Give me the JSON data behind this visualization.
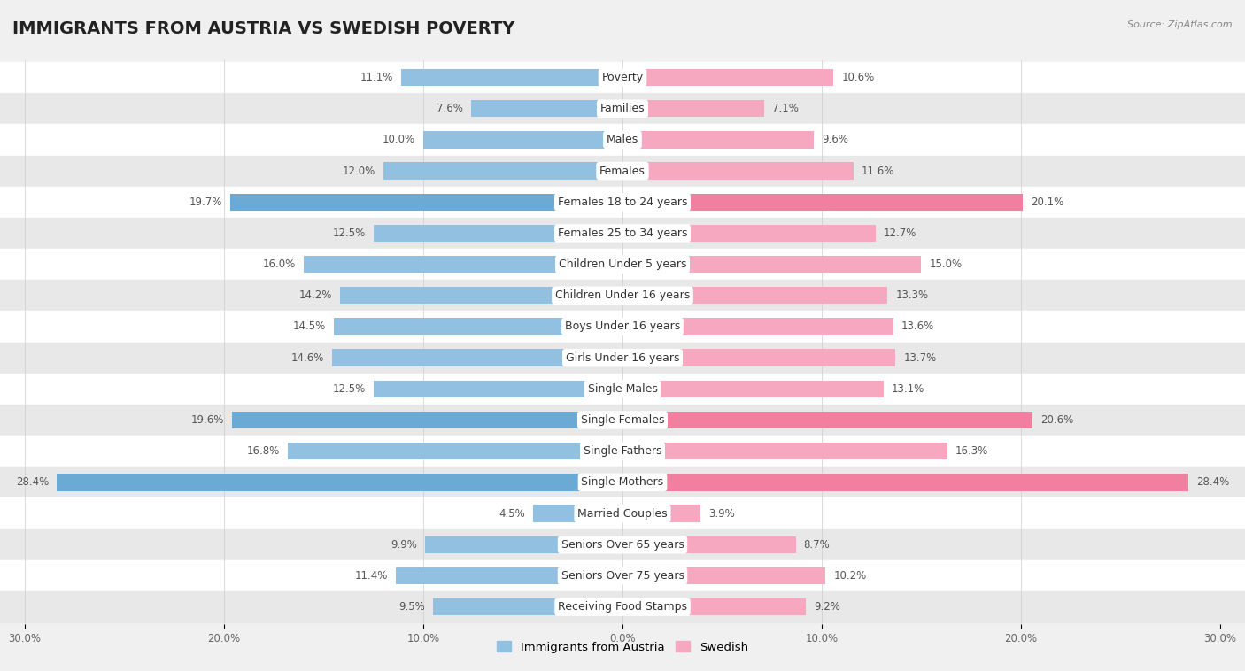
{
  "title": "IMMIGRANTS FROM AUSTRIA VS SWEDISH POVERTY",
  "source": "Source: ZipAtlas.com",
  "categories": [
    "Poverty",
    "Families",
    "Males",
    "Females",
    "Females 18 to 24 years",
    "Females 25 to 34 years",
    "Children Under 5 years",
    "Children Under 16 years",
    "Boys Under 16 years",
    "Girls Under 16 years",
    "Single Males",
    "Single Females",
    "Single Fathers",
    "Single Mothers",
    "Married Couples",
    "Seniors Over 65 years",
    "Seniors Over 75 years",
    "Receiving Food Stamps"
  ],
  "left_values": [
    11.1,
    7.6,
    10.0,
    12.0,
    19.7,
    12.5,
    16.0,
    14.2,
    14.5,
    14.6,
    12.5,
    19.6,
    16.8,
    28.4,
    4.5,
    9.9,
    11.4,
    9.5
  ],
  "right_values": [
    10.6,
    7.1,
    9.6,
    11.6,
    20.1,
    12.7,
    15.0,
    13.3,
    13.6,
    13.7,
    13.1,
    20.6,
    16.3,
    28.4,
    3.9,
    8.7,
    10.2,
    9.2
  ],
  "left_color": "#92c0e0",
  "right_color": "#f5a8c0",
  "highlight_left_color": "#6aaad4",
  "highlight_right_color": "#f07fa0",
  "highlight_rows": [
    4,
    11,
    13
  ],
  "xlim": 30.0,
  "background_color": "#f0f0f0",
  "bar_bg_odd": "#ffffff",
  "bar_bg_even": "#e8e8e8",
  "legend_left": "Immigrants from Austria",
  "legend_right": "Swedish",
  "title_fontsize": 14,
  "label_fontsize": 9,
  "value_fontsize": 8.5,
  "tick_positions": [
    -30,
    -20,
    -10,
    0,
    10,
    20,
    30
  ],
  "tick_labels": [
    "30.0%",
    "20.0%",
    "10.0%",
    "0.0%",
    "10.0%",
    "20.0%",
    "30.0%"
  ]
}
